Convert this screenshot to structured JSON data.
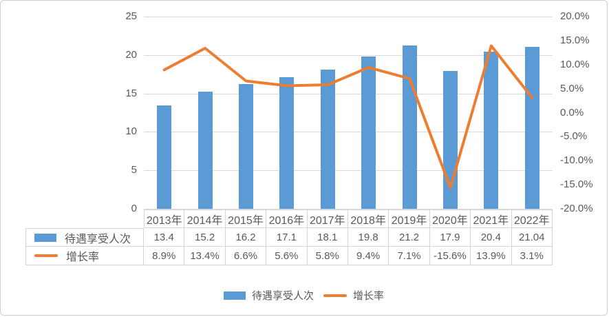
{
  "chart_data": {
    "type": "bar",
    "subtype": "combo-bar-line",
    "title": "",
    "categories": [
      "2013年",
      "2014年",
      "2015年",
      "2016年",
      "2017年",
      "2018年",
      "2019年",
      "2020年",
      "2021年",
      "2022年"
    ],
    "series": [
      {
        "name": "待遇享受人次",
        "chart": "bar",
        "axis": "left",
        "color": "#5b9bd5",
        "values": [
          13.4,
          15.2,
          16.2,
          17.1,
          18.1,
          19.8,
          21.2,
          17.9,
          20.4,
          21.04
        ],
        "labels": [
          "13.4",
          "15.2",
          "16.2",
          "17.1",
          "18.1",
          "19.8",
          "21.2",
          "17.9",
          "20.4",
          "21.04"
        ]
      },
      {
        "name": "增长率",
        "chart": "line",
        "axis": "right",
        "color": "#ed7d31",
        "values": [
          8.9,
          13.4,
          6.6,
          5.6,
          5.8,
          9.4,
          7.1,
          -15.6,
          13.9,
          3.1
        ],
        "labels": [
          "8.9%",
          "13.4%",
          "6.6%",
          "5.6%",
          "5.8%",
          "9.4%",
          "7.1%",
          "-15.6%",
          "13.9%",
          "3.1%"
        ]
      }
    ],
    "left_axis": {
      "range": [
        0,
        25
      ],
      "ticks": [
        "25",
        "20",
        "15",
        "10",
        "5",
        "0"
      ]
    },
    "right_axis": {
      "range": [
        -20,
        20
      ],
      "ticks": [
        "20.0%",
        "15.0%",
        "10.0%",
        "5.0%",
        "0.0%",
        "-5.0%",
        "-10.0%",
        "-15.0%",
        "-20.0%"
      ]
    },
    "grid": true,
    "legend_position": "bottom",
    "data_table_shown": true
  },
  "legend": {
    "items": [
      {
        "label": "待遇享受人次",
        "swatch": "bar",
        "color": "#5b9bd5"
      },
      {
        "label": "增长率",
        "swatch": "line",
        "color": "#ed7d31"
      }
    ]
  },
  "colors": {
    "bar": "#5b9bd5",
    "line": "#ed7d31",
    "grid": "#d9d9d9",
    "axis_text": "#595959",
    "table_border": "#d4d4d4",
    "background": "#ffffff"
  }
}
